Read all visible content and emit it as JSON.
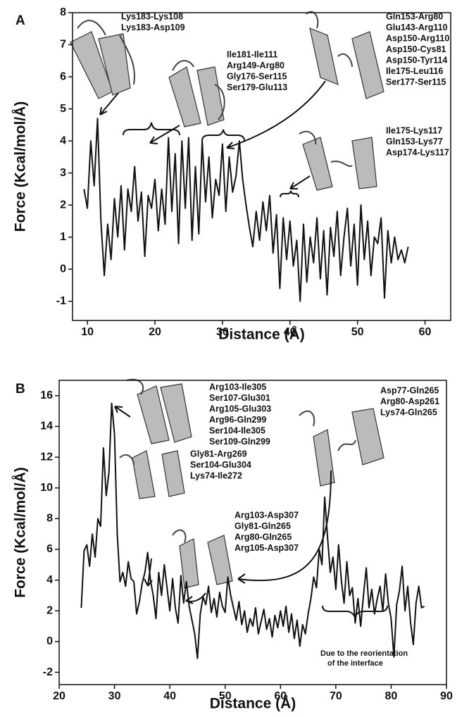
{
  "chart_data": [
    {
      "type": "line",
      "label": "A",
      "xlabel": "Distance (Å)",
      "ylabel": "Force (Kcal/mol/Å)",
      "xlim": [
        7.8,
        63.8
      ],
      "ylim": [
        -1.6,
        8
      ],
      "xticks": [
        10,
        20,
        30,
        40,
        50,
        60
      ],
      "yticks": [
        -1,
        0,
        1,
        2,
        3,
        4,
        5,
        6,
        7,
        8
      ],
      "color": "#111111",
      "x": [
        9.5,
        10,
        10.5,
        11,
        11.5,
        12,
        12.5,
        13,
        13.5,
        14,
        14.5,
        15,
        15.5,
        16,
        16.5,
        17,
        17.5,
        18,
        18.5,
        19,
        19.5,
        20,
        20.5,
        21,
        21.5,
        22,
        22.5,
        23,
        23.5,
        24,
        24.5,
        25,
        25.5,
        26,
        26.5,
        27,
        27.5,
        28,
        28.5,
        29,
        29.5,
        30,
        30.5,
        31,
        31.5,
        32,
        32.5,
        33,
        33.5,
        34,
        34.5,
        35,
        35.5,
        36,
        36.5,
        37,
        37.5,
        38,
        38.5,
        39,
        39.5,
        40,
        40.5,
        41,
        41.5,
        42,
        42.5,
        43,
        43.5,
        44,
        44.5,
        45,
        45.5,
        46,
        46.5,
        47,
        47.5,
        48,
        48.5,
        49,
        49.5,
        50,
        50.5,
        51,
        51.5,
        52,
        52.5,
        53,
        53.5,
        54,
        54.5,
        55,
        55.5,
        56,
        56.5,
        57,
        57.5
      ],
      "values": [
        2.5,
        1.9,
        4.0,
        2.6,
        4.7,
        1.5,
        -0.2,
        1.4,
        0.3,
        2.2,
        1.0,
        2.6,
        0.6,
        2.5,
        1.8,
        3.2,
        1.5,
        2.4,
        0.4,
        2.3,
        1.9,
        2.8,
        1.2,
        2.5,
        1.4,
        4.1,
        1.8,
        3.6,
        0.8,
        4.0,
        1.9,
        4.1,
        0.9,
        3.2,
        1.1,
        4.0,
        2.1,
        3.5,
        1.6,
        2.8,
        2.3,
        3.9,
        1.8,
        3.5,
        2.4,
        2.9,
        4.0,
        2.8,
        2.0,
        1.3,
        0.7,
        1.8,
        0.9,
        2.1,
        1.2,
        2.3,
        0.5,
        1.7,
        -0.6,
        1.6,
        0.3,
        1.5,
        0.1,
        0.9,
        -1.0,
        1.4,
        -0.4,
        1.0,
        0.2,
        1.6,
        -0.3,
        1.2,
        -0.8,
        1.3,
        0.4,
        1.8,
        -0.2,
        1.0,
        1.9,
        0.1,
        1.4,
        -0.5,
        2.0,
        0.3,
        1.5,
        -0.2,
        1.0,
        0.8,
        1.6,
        -0.9,
        1.2,
        0.2,
        1.0,
        0.3,
        0.6,
        0.2,
        0.7
      ],
      "annotations": [
        [
          "Lys183-Lys108",
          "Lys183-Asp109"
        ],
        [
          "Ile181-Ile111",
          "Arg149-Arg80",
          "Gly176-Ser115",
          "Ser179-Glu113"
        ],
        [
          "Gln153-Arg80",
          "Glu143-Arg110",
          "Asp150-Arg110",
          "Asp150-Cys81",
          "Asp150-Tyr114",
          "Ile175-Leu116",
          "Ser177-Ser115"
        ],
        [
          "Ile175-Lys117",
          "Gln153-Lys77",
          "Asp174-Lys117"
        ]
      ]
    },
    {
      "type": "line",
      "label": "B",
      "xlabel": "Distance (Å)",
      "ylabel": "Force (Kcal/mol/Å)",
      "xlim": [
        20,
        90
      ],
      "ylim": [
        -2.8,
        17
      ],
      "xticks": [
        20,
        30,
        40,
        50,
        60,
        70,
        80,
        90
      ],
      "yticks": [
        -2,
        0,
        2,
        4,
        6,
        8,
        10,
        12,
        14,
        16
      ],
      "color": "#111111",
      "x": [
        24,
        24.5,
        25,
        25.5,
        26,
        26.5,
        27,
        27.5,
        28,
        28.5,
        29,
        29.5,
        30,
        30.5,
        31,
        31.5,
        32,
        32.5,
        33,
        33.5,
        34,
        34.5,
        35,
        35.5,
        36,
        36.5,
        37,
        37.5,
        38,
        38.5,
        39,
        39.5,
        40,
        40.5,
        41,
        41.5,
        42,
        42.5,
        43,
        43.5,
        44,
        44.5,
        45,
        45.5,
        46,
        46.5,
        47,
        47.5,
        48,
        48.5,
        49,
        49.5,
        50,
        50.5,
        51,
        51.5,
        52,
        52.5,
        53,
        53.5,
        54,
        54.5,
        55,
        55.5,
        56,
        56.5,
        57,
        57.5,
        58,
        58.5,
        59,
        59.5,
        60,
        60.5,
        61,
        61.5,
        62,
        62.5,
        63,
        63.5,
        64,
        64.5,
        65,
        65.5,
        66,
        66.5,
        67,
        67.5,
        68,
        68.5,
        69,
        69.5,
        70,
        70.5,
        71,
        71.5,
        72,
        72.5,
        73,
        73.5,
        74,
        74.5,
        75,
        75.5,
        76,
        76.5,
        77,
        77.5,
        78,
        78.5,
        79,
        79.5,
        80,
        80.5,
        81,
        81.5,
        82,
        82.5,
        83,
        83.5,
        84,
        84.5,
        85,
        85.5,
        86
      ],
      "values": [
        2.2,
        5.9,
        6.3,
        4.9,
        7.0,
        5.5,
        8.0,
        7.5,
        12.6,
        9.5,
        11.0,
        15.5,
        13.5,
        7.0,
        3.9,
        4.5,
        3.6,
        5.2,
        4.1,
        3.9,
        1.8,
        2.6,
        3.8,
        4.5,
        5.8,
        4.0,
        3.0,
        1.5,
        4.5,
        3.0,
        5.0,
        3.5,
        2.0,
        4.1,
        2.2,
        1.2,
        4.3,
        2.5,
        3.9,
        2.3,
        1.4,
        0.5,
        -1.1,
        1.8,
        2.9,
        2.4,
        3.6,
        1.9,
        2.8,
        1.6,
        3.2,
        2.3,
        1.9,
        4.2,
        3.0,
        2.2,
        1.4,
        2.6,
        1.1,
        2.0,
        0.6,
        1.5,
        1.0,
        2.2,
        0.5,
        1.3,
        2.1,
        0.8,
        1.5,
        0.3,
        1.7,
        0.9,
        2.0,
        1.0,
        2.3,
        0.6,
        1.8,
        0.2,
        1.4,
        -0.3,
        1.1,
        0.5,
        1.8,
        2.8,
        4.2,
        3.5,
        6.0,
        5.0,
        9.4,
        6.8,
        4.5,
        5.5,
        3.4,
        6.3,
        4.0,
        2.5,
        5.2,
        3.0,
        3.5,
        1.2,
        2.8,
        1.0,
        3.0,
        4.8,
        2.2,
        3.4,
        1.8,
        2.8,
        3.6,
        2.0,
        4.4,
        2.5,
        1.5,
        -1.0,
        2.4,
        3.3,
        4.9,
        2.0,
        3.6,
        1.3,
        -0.2,
        2.5,
        3.6,
        2.2,
        2.3
      ],
      "annotations": [
        [
          "Arg103-Ile305",
          "Ser107-Glu301",
          "Arg105-Glu303",
          "Arg96-Gln299",
          "Ser104-Ile305",
          "Ser109-Gln299"
        ],
        [
          "Gly81-Arg269",
          "Ser104-Glu304",
          "Lys74-Ile272"
        ],
        [
          "Arg103-Asp307",
          "Gly81-Gln265",
          "Arg80-Gln265",
          "Arg105-Asp307"
        ],
        [
          "Asp77-Gln265",
          "Arg80-Asp261",
          "Lys74-Gln265"
        ]
      ],
      "note": [
        "Due to the reorientation",
        "of the interface"
      ]
    }
  ]
}
